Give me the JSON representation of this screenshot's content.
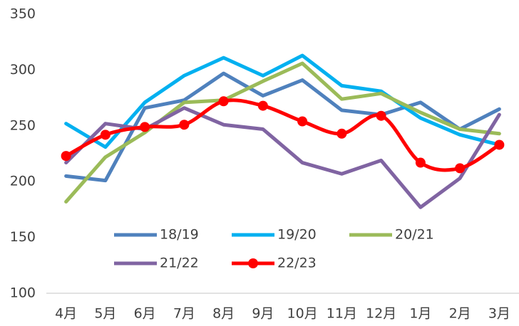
{
  "chart_data": {
    "type": "line",
    "categories": [
      "4月",
      "5月",
      "6月",
      "7月",
      "8月",
      "9月",
      "10月",
      "11月",
      "12月",
      "1月",
      "2月",
      "3月"
    ],
    "series": [
      {
        "name": "18/19",
        "color": "#4f81bd",
        "values": [
          205,
          201,
          266,
          273,
          297,
          277,
          291,
          264,
          260,
          271,
          247,
          265
        ]
      },
      {
        "name": "19/20",
        "color": "#00b0f0",
        "values": [
          252,
          231,
          271,
          295,
          311,
          295,
          313,
          286,
          281,
          257,
          242,
          233
        ]
      },
      {
        "name": "20/21",
        "color": "#9bbb59",
        "values": [
          182,
          222,
          244,
          271,
          273,
          290,
          306,
          274,
          279,
          262,
          247,
          243
        ]
      },
      {
        "name": "21/22",
        "color": "#8064a2",
        "values": [
          217,
          252,
          247,
          266,
          251,
          247,
          217,
          207,
          219,
          177,
          203,
          260
        ]
      },
      {
        "name": "22/23",
        "color": "#ff0000",
        "smooth": true,
        "markers": true,
        "values": [
          223,
          242,
          249,
          251,
          272,
          268,
          254,
          243,
          259,
          217,
          212,
          233
        ]
      }
    ],
    "ylim": [
      100,
      350
    ],
    "yticks": [
      100,
      150,
      200,
      250,
      300,
      350
    ],
    "grid": false,
    "legend": "center"
  }
}
